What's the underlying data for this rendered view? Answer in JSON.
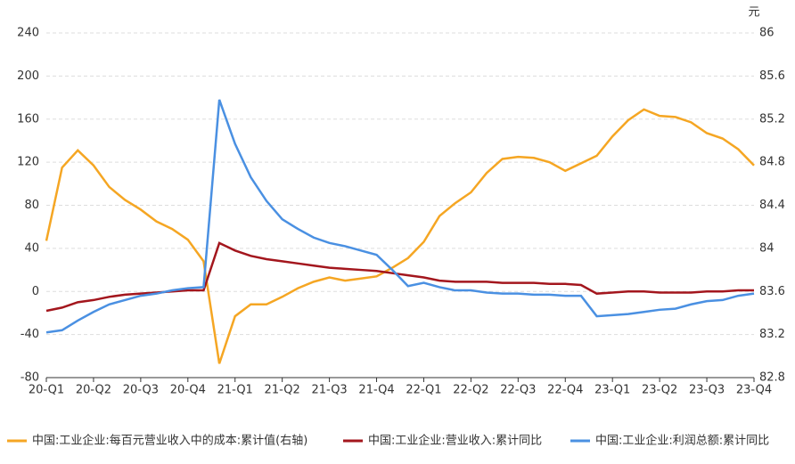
{
  "chart_data": {
    "type": "line",
    "y2label": "元",
    "categories": [
      "20-Q1",
      null,
      null,
      "20-Q2",
      null,
      null,
      "20-Q3",
      null,
      null,
      "20-Q4",
      null,
      null,
      "21-Q1",
      null,
      null,
      "21-Q2",
      null,
      null,
      "21-Q3",
      null,
      null,
      "21-Q4",
      null,
      null,
      "22-Q1",
      null,
      null,
      "22-Q2",
      null,
      null,
      "22-Q3",
      null,
      null,
      "22-Q4",
      null,
      null,
      "23-Q1",
      null,
      null,
      "23-Q2",
      null,
      null,
      "23-Q3",
      null,
      null,
      "23-Q4"
    ],
    "ylim": [
      -80,
      240
    ],
    "yticks": [
      -80,
      -40,
      0,
      40,
      80,
      120,
      160,
      200,
      240
    ],
    "y2lim": [
      82.8,
      86
    ],
    "y2ticks": [
      82.8,
      83.2,
      83.6,
      84,
      84.4,
      84.8,
      85.2,
      85.6,
      86
    ],
    "grid": true,
    "legend": "bottom",
    "series": [
      {
        "name": "中国:工业企业:每百元营业收入中的成本:累计值(右轴)",
        "color": "#f5a623",
        "axis": "y2",
        "values": [
          84.07,
          84.75,
          84.91,
          84.77,
          84.57,
          84.45,
          84.36,
          84.25,
          84.18,
          84.08,
          83.88,
          82.93,
          83.37,
          83.48,
          83.48,
          83.55,
          83.63,
          83.69,
          83.73,
          83.7,
          83.72,
          83.74,
          83.82,
          83.91,
          84.06,
          84.3,
          84.42,
          84.52,
          84.7,
          84.83,
          84.85,
          84.84,
          84.8,
          84.72,
          84.79,
          84.86,
          85.04,
          85.19,
          85.29,
          85.23,
          85.22,
          85.17,
          85.07,
          85.02,
          84.92,
          84.77
        ]
      },
      {
        "name": "中国:工业企业:营业收入:累计同比",
        "color": "#a3161d",
        "values": [
          -18,
          -15,
          -10,
          -8,
          -5,
          -3,
          -2,
          -1,
          0,
          1,
          1,
          45,
          38,
          33,
          30,
          28,
          26,
          24,
          22,
          21,
          20,
          19,
          17,
          15,
          13,
          10,
          9,
          9,
          9,
          8,
          8,
          8,
          7,
          7,
          6,
          -2,
          -1,
          0,
          0,
          -1,
          -1,
          -1,
          0,
          0,
          1,
          1
        ]
      },
      {
        "name": "中国:工业企业:利润总额:累计同比",
        "color": "#4a90e2",
        "values": [
          -38,
          -36,
          -27,
          -19,
          -12,
          -8,
          -4,
          -2,
          1,
          3,
          4,
          178,
          137,
          106,
          84,
          67,
          58,
          50,
          45,
          42,
          38,
          34,
          20,
          5,
          8,
          4,
          1,
          1,
          -1,
          -2,
          -2,
          -3,
          -3,
          -4,
          -4,
          -23,
          -22,
          -21,
          -19,
          -17,
          -16,
          -12,
          -9,
          -8,
          -4,
          -2
        ]
      }
    ]
  }
}
